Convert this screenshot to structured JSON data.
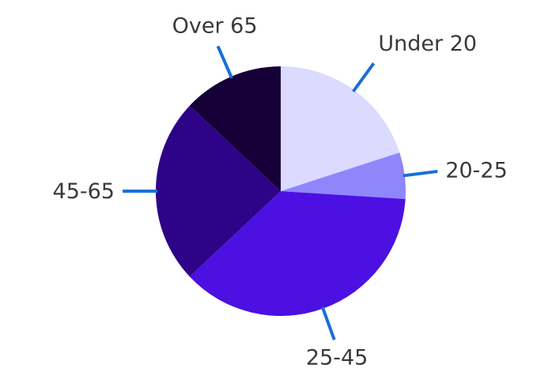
{
  "chart_data": {
    "type": "pie",
    "title": "",
    "slices": [
      {
        "label": "Under 20",
        "value": 20,
        "color": "#dcdaff"
      },
      {
        "label": "20-25",
        "value": 6,
        "color": "#8f86fb"
      },
      {
        "label": "25-45",
        "value": 37,
        "color": "#4c10e2"
      },
      {
        "label": "45-65",
        "value": 24,
        "color": "#2d0387"
      },
      {
        "label": "Over 65",
        "value": 13,
        "color": "#150038"
      }
    ],
    "start_angle_deg": 0,
    "direction": "clockwise",
    "label_placement": "outside-with-leader-lines",
    "leader_color": "#1a6fd6",
    "legend": "none"
  }
}
